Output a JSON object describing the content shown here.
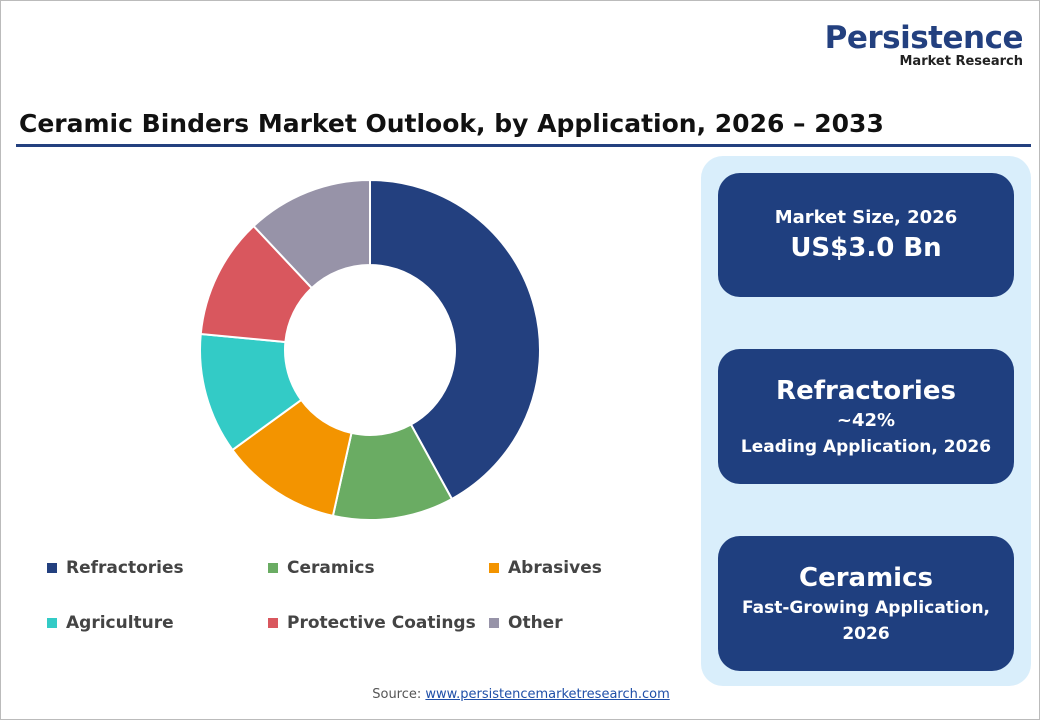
{
  "header": {
    "logo": "Persistence",
    "logo_sub": "Market Research",
    "title": "Ceramic Binders Market Outlook, by Application, 2026 – 2033"
  },
  "chart_data": {
    "type": "pie",
    "donut": true,
    "categories": [
      "Refractories",
      "Ceramics",
      "Abrasives",
      "Agriculture",
      "Protective Coatings",
      "Other"
    ],
    "values": [
      42,
      11.5,
      11.5,
      11.5,
      11.5,
      12
    ],
    "colors": [
      "#23407f",
      "#6aac63",
      "#f39400",
      "#33cbc6",
      "#d9575e",
      "#9793a8"
    ]
  },
  "panel": {
    "cards": [
      {
        "lines": [
          "Market Size, 2026",
          "US$3.0 Bn"
        ]
      },
      {
        "lines": [
          "Refractories",
          "~42%",
          "Leading Application, 2026"
        ]
      },
      {
        "lines": [
          "Ceramics",
          "Fast-Growing Application,",
          "2026"
        ]
      }
    ]
  },
  "footer": {
    "label": "Source:",
    "link": "www.persistencemarketresearch.com"
  }
}
